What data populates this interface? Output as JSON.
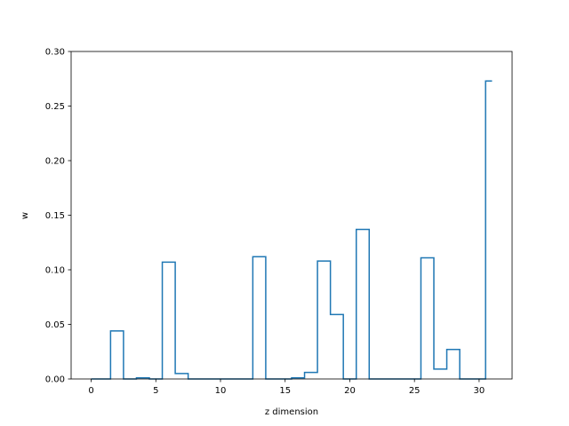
{
  "chart_data": {
    "type": "line",
    "drawstyle": "steps-mid",
    "xlabel": "z dimension",
    "ylabel": "w",
    "xlim": [
      -1.55,
      32.55
    ],
    "ylim": [
      0,
      0.3
    ],
    "xticks": [
      0,
      5,
      10,
      15,
      20,
      25,
      30
    ],
    "xtick_labels": [
      "0",
      "5",
      "10",
      "15",
      "20",
      "25",
      "30"
    ],
    "yticks": [
      0.0,
      0.05,
      0.1,
      0.15,
      0.2,
      0.25,
      0.3
    ],
    "ytick_labels": [
      "0.00",
      "0.05",
      "0.10",
      "0.15",
      "0.20",
      "0.25",
      "0.30"
    ],
    "grid": false,
    "series": [
      {
        "color": "#1f77b4",
        "x": [
          0,
          1,
          2,
          3,
          4,
          5,
          6,
          7,
          8,
          9,
          10,
          11,
          12,
          13,
          14,
          15,
          16,
          17,
          18,
          19,
          20,
          21,
          22,
          23,
          24,
          25,
          26,
          27,
          28,
          29,
          30,
          31
        ],
        "y": [
          0,
          0,
          0.044,
          0,
          0.001,
          0,
          0.107,
          0.005,
          0,
          0,
          0,
          0,
          0,
          0.112,
          0,
          0,
          0.001,
          0.006,
          0.108,
          0.059,
          0,
          0.137,
          0,
          0,
          0,
          0,
          0.111,
          0.009,
          0.027,
          0,
          0,
          0.273
        ]
      }
    ]
  }
}
